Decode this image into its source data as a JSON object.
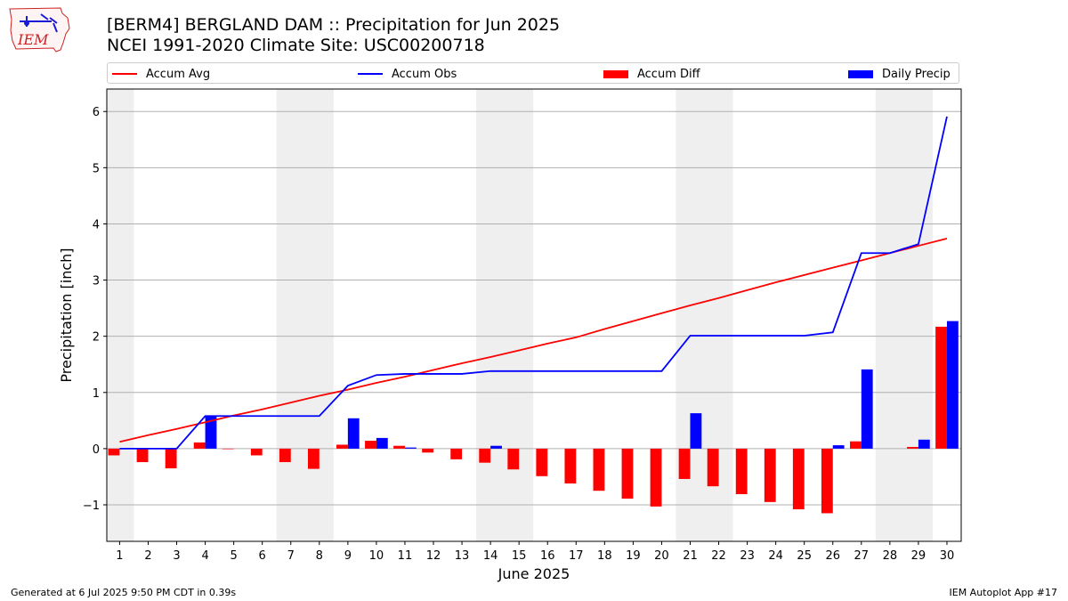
{
  "logo": {
    "text": "IEM",
    "icon": "iem-iowa-logo"
  },
  "header": {
    "title": "[BERM4] BERGLAND DAM :: Precipitation for Jun 2025",
    "subtitle": "NCEI 1991-2020 Climate Site: USC00200718"
  },
  "legend": {
    "placement": "top",
    "items": [
      {
        "label": "Accum Avg",
        "kind": "line",
        "color": "#ff0000"
      },
      {
        "label": "Accum Obs",
        "kind": "line",
        "color": "#0000ff"
      },
      {
        "label": "Accum Diff",
        "kind": "bar",
        "color": "#ff0000"
      },
      {
        "label": "Daily Precip",
        "kind": "bar",
        "color": "#0000ff"
      }
    ]
  },
  "footer": {
    "left": "Generated at 6 Jul 2025 9:50 PM CDT in 0.39s",
    "right": "IEM Autoplot App #17"
  },
  "chart_data": {
    "type": "bar",
    "xlabel": "June 2025",
    "ylabel": "Precipitation [inch]",
    "ylim": [
      -1.65,
      6.4
    ],
    "yticks": [
      -1,
      0,
      1,
      2,
      3,
      4,
      5,
      6
    ],
    "ytick_labels": [
      "−1",
      "0",
      "1",
      "2",
      "3",
      "4",
      "5",
      "6"
    ],
    "grid": true,
    "weekend_shading": [
      [
        1,
        1
      ],
      [
        7,
        8
      ],
      [
        14,
        15
      ],
      [
        21,
        22
      ],
      [
        28,
        29
      ]
    ],
    "x": [
      1,
      2,
      3,
      4,
      5,
      6,
      7,
      8,
      9,
      10,
      11,
      12,
      13,
      14,
      15,
      16,
      17,
      18,
      19,
      20,
      21,
      22,
      23,
      24,
      25,
      26,
      27,
      28,
      29,
      30
    ],
    "series": [
      {
        "name": "Accum Avg",
        "kind": "line",
        "color": "#ff0000",
        "values": [
          0.12,
          0.24,
          0.35,
          0.47,
          0.59,
          0.7,
          0.82,
          0.94,
          1.05,
          1.17,
          1.28,
          1.4,
          1.52,
          1.63,
          1.75,
          1.87,
          1.98,
          2.13,
          2.27,
          2.41,
          2.55,
          2.68,
          2.82,
          2.96,
          3.09,
          3.22,
          3.35,
          3.48,
          3.61,
          3.74
        ]
      },
      {
        "name": "Accum Obs",
        "kind": "line",
        "color": "#0000ff",
        "values": [
          0.0,
          0.0,
          0.0,
          0.58,
          0.58,
          0.58,
          0.58,
          0.58,
          1.12,
          1.31,
          1.33,
          1.33,
          1.33,
          1.38,
          1.38,
          1.38,
          1.38,
          1.38,
          1.38,
          1.38,
          2.01,
          2.01,
          2.01,
          2.01,
          2.01,
          2.07,
          3.48,
          3.48,
          3.64,
          5.91
        ]
      },
      {
        "name": "Accum Diff",
        "kind": "bar",
        "color": "#ff0000",
        "values": [
          -0.12,
          -0.24,
          -0.35,
          0.11,
          -0.01,
          -0.12,
          -0.24,
          -0.36,
          0.07,
          0.14,
          0.05,
          -0.07,
          -0.19,
          -0.25,
          -0.37,
          -0.49,
          -0.62,
          -0.75,
          -0.89,
          -1.03,
          -0.54,
          -0.67,
          -0.81,
          -0.95,
          -1.08,
          -1.15,
          0.13,
          0.0,
          0.03,
          2.17
        ]
      },
      {
        "name": "Daily Precip",
        "kind": "bar",
        "color": "#0000ff",
        "values": [
          0,
          0,
          0,
          0.58,
          0,
          0,
          0,
          0,
          0.54,
          0.19,
          0.02,
          0,
          0,
          0.05,
          0,
          0,
          0,
          0,
          0,
          0,
          0.63,
          0,
          0,
          0,
          0,
          0.06,
          1.41,
          0,
          0.16,
          2.27
        ]
      }
    ]
  }
}
